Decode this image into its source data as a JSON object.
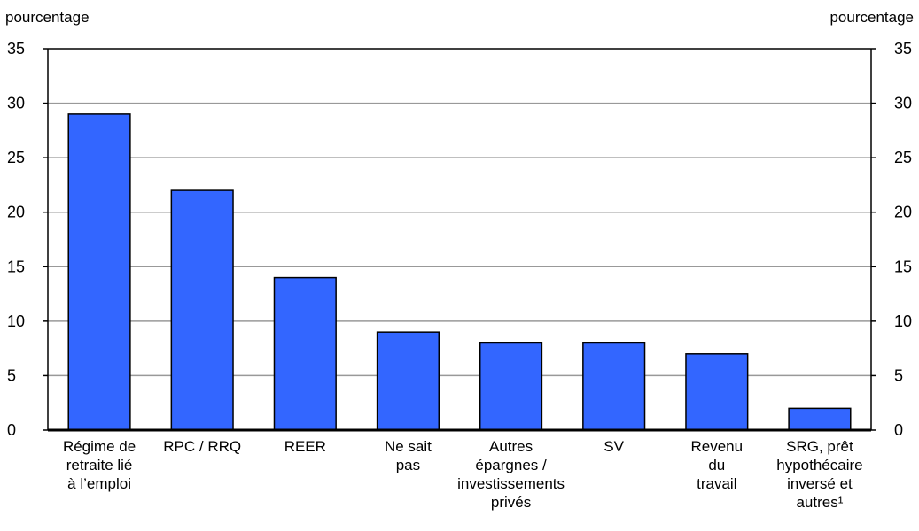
{
  "chart_data": {
    "type": "bar",
    "categories": [
      [
        "Régime de",
        "retraite lié",
        "à l’emploi"
      ],
      [
        "RPC / RRQ"
      ],
      [
        "REER"
      ],
      [
        "Ne sait",
        "pas"
      ],
      [
        "Autres",
        "épargnes /",
        "investissements",
        "privés"
      ],
      [
        "SV"
      ],
      [
        "Revenu",
        "du",
        "travail"
      ],
      [
        "SRG, prêt",
        "hypothécaire",
        "inversé et",
        "autres¹"
      ]
    ],
    "values": [
      29,
      22,
      14,
      9,
      8,
      8,
      7,
      2
    ],
    "ylabel_left": "pourcentage",
    "ylabel_right": "pourcentage",
    "ylim": [
      0,
      35
    ],
    "yticks": [
      0,
      5,
      10,
      15,
      20,
      25,
      30,
      35
    ],
    "grid": true,
    "bar_color": "#3366ff",
    "bar_outline": "#000000",
    "grid_color": "#999999"
  }
}
